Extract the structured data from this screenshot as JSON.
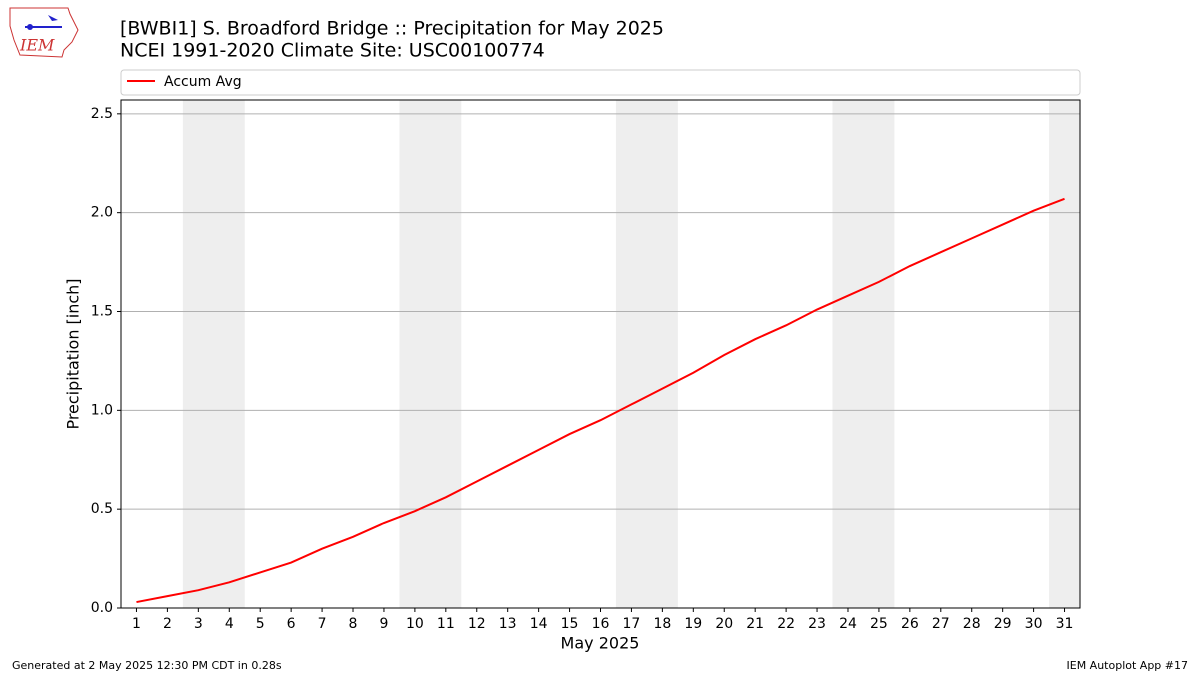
{
  "chart_data": {
    "type": "line",
    "title": "[BWBI1] S. Broadford Bridge :: Precipitation for May 2025",
    "subtitle": "NCEI 1991-2020 Climate Site: USC00100774",
    "logo_text": "IEM",
    "x_label": "May 2025",
    "y_label": "Precipitation [inch]",
    "footer_left": "Generated at 2 May 2025 12:30 PM CDT in 0.28s",
    "footer_right": "IEM Autoplot App #17",
    "x": [
      1,
      2,
      3,
      4,
      5,
      6,
      7,
      8,
      9,
      10,
      11,
      12,
      13,
      14,
      15,
      16,
      17,
      18,
      19,
      20,
      21,
      22,
      23,
      24,
      25,
      26,
      27,
      28,
      29,
      30,
      31
    ],
    "series": [
      {
        "name": "Accum Avg",
        "color": "#ff0000",
        "values": [
          0.03,
          0.06,
          0.09,
          0.13,
          0.18,
          0.23,
          0.3,
          0.36,
          0.43,
          0.49,
          0.56,
          0.64,
          0.72,
          0.8,
          0.88,
          0.95,
          1.03,
          1.11,
          1.19,
          1.28,
          1.36,
          1.43,
          1.51,
          1.58,
          1.65,
          1.73,
          1.8,
          1.87,
          1.94,
          2.01,
          2.07
        ]
      }
    ],
    "xlim": [
      0.5,
      31.5
    ],
    "xticks": [
      1,
      2,
      3,
      4,
      5,
      6,
      7,
      8,
      9,
      10,
      11,
      12,
      13,
      14,
      15,
      16,
      17,
      18,
      19,
      20,
      21,
      22,
      23,
      24,
      25,
      26,
      27,
      28,
      29,
      30,
      31
    ],
    "ylim": [
      0,
      2.57
    ],
    "yticks": [
      {
        "value": 0,
        "label": "0.0"
      },
      0.5,
      {
        "value": 1,
        "label": "1.0"
      },
      1.5,
      {
        "value": 2,
        "label": "2.0"
      },
      2.5
    ],
    "grid": "y",
    "shade_color": "#eeeeee",
    "shaded_spans": [
      [
        2.5,
        4.5
      ],
      [
        9.5,
        11.5
      ],
      [
        16.5,
        18.5
      ],
      [
        23.5,
        25.5
      ],
      [
        30.5,
        31.5
      ]
    ],
    "legend": "top"
  }
}
